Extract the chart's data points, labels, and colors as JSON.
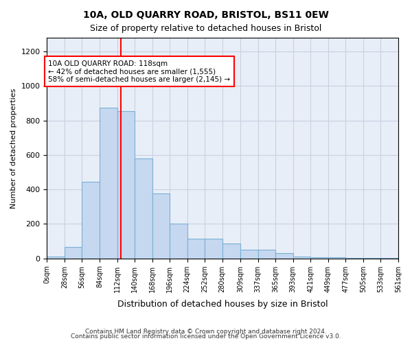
{
  "title": "10A, OLD QUARRY ROAD, BRISTOL, BS11 0EW",
  "subtitle": "Size of property relative to detached houses in Bristol",
  "xlabel": "Distribution of detached houses by size in Bristol",
  "ylabel": "Number of detached properties",
  "bar_color": "#c5d8f0",
  "bar_edge_color": "#7aafd4",
  "grid_color": "#c8d0e0",
  "background_color": "#e8eef8",
  "vline_x": 118,
  "vline_color": "red",
  "annotation_text": "10A OLD QUARRY ROAD: 118sqm\n← 42% of detached houses are smaller (1,555)\n58% of semi-detached houses are larger (2,145) →",
  "annotation_box_color": "white",
  "annotation_border_color": "red",
  "footer1": "Contains HM Land Registry data © Crown copyright and database right 2024.",
  "footer2": "Contains public sector information licensed under the Open Government Licence v3.0.",
  "bin_labels": [
    "0sqm",
    "28sqm",
    "56sqm",
    "84sqm",
    "112sqm",
    "140sqm",
    "168sqm",
    "196sqm",
    "224sqm",
    "252sqm",
    "280sqm",
    "309sqm",
    "337sqm",
    "365sqm",
    "393sqm",
    "421sqm",
    "449sqm",
    "477sqm",
    "505sqm",
    "533sqm",
    "561sqm"
  ],
  "bin_edges": [
    0,
    28,
    56,
    84,
    112,
    140,
    168,
    196,
    224,
    252,
    280,
    309,
    337,
    365,
    393,
    421,
    449,
    477,
    505,
    533,
    561
  ],
  "bar_heights": [
    10,
    65,
    445,
    875,
    855,
    580,
    375,
    200,
    115,
    115,
    85,
    50,
    50,
    30,
    12,
    8,
    5,
    3,
    2,
    1
  ],
  "ylim": [
    0,
    1280
  ],
  "yticks": [
    0,
    200,
    400,
    600,
    800,
    1000,
    1200
  ]
}
